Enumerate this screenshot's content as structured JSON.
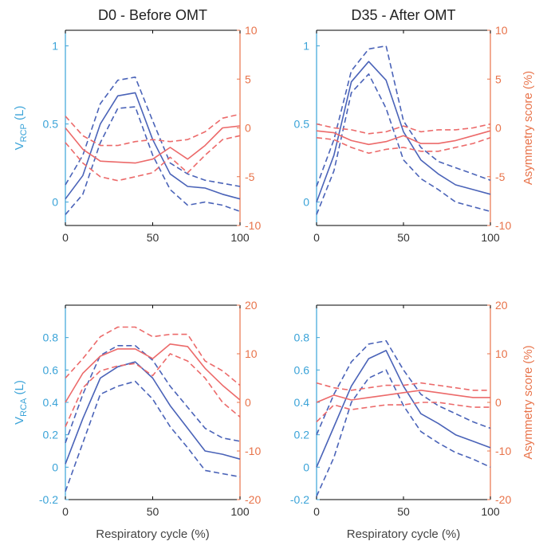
{
  "colors": {
    "blue": "#4a63b8",
    "red": "#ec6a6a",
    "left_axis": "#3aa3d8",
    "right_axis": "#e8734a",
    "frame": "#000000"
  },
  "chart_data": [
    {
      "type": "line",
      "title": "D0 - Before OMT",
      "xlabel": "",
      "xlim": [
        0,
        100
      ],
      "xticks": [
        0,
        50,
        100
      ],
      "ylabel": {
        "main": "V",
        "sub": "RCP",
        "unit": " (L)"
      },
      "ylim": [
        -0.15,
        1.1
      ],
      "yticks": [
        0,
        0.5,
        1
      ],
      "y2label": "",
      "y2lim": [
        -10,
        10
      ],
      "y2ticks": [
        -10,
        -5,
        0,
        5,
        10
      ],
      "x": [
        0,
        10,
        20,
        30,
        40,
        50,
        60,
        70,
        80,
        90,
        100
      ],
      "series": [
        {
          "axis": "left",
          "color": "blue",
          "style": "solid",
          "values": [
            0.02,
            0.17,
            0.5,
            0.68,
            0.7,
            0.4,
            0.18,
            0.1,
            0.09,
            0.05,
            0.02
          ]
        },
        {
          "axis": "left",
          "color": "blue",
          "style": "dashed",
          "values": [
            0.11,
            0.3,
            0.63,
            0.78,
            0.8,
            0.52,
            0.25,
            0.18,
            0.14,
            0.12,
            0.1
          ]
        },
        {
          "axis": "left",
          "color": "blue",
          "style": "dashed",
          "values": [
            -0.08,
            0.05,
            0.38,
            0.6,
            0.61,
            0.3,
            0.08,
            -0.02,
            0.0,
            -0.02,
            -0.06
          ]
        },
        {
          "axis": "right",
          "color": "red",
          "style": "solid",
          "values": [
            0.0,
            -2.2,
            -3.4,
            -3.5,
            -3.6,
            -3.2,
            -2.0,
            -3.2,
            -1.8,
            0.0,
            0.2
          ]
        },
        {
          "axis": "right",
          "color": "red",
          "style": "dashed",
          "values": [
            1.2,
            -0.8,
            -1.8,
            -1.8,
            -1.4,
            -1.2,
            -1.4,
            -1.2,
            -0.4,
            1.0,
            1.4
          ]
        },
        {
          "axis": "right",
          "color": "red",
          "style": "dashed",
          "values": [
            -1.5,
            -3.6,
            -5.0,
            -5.4,
            -5.0,
            -4.6,
            -3.0,
            -4.6,
            -2.8,
            -1.2,
            -0.8
          ]
        }
      ]
    },
    {
      "type": "line",
      "title": "D35 - After OMT",
      "xlabel": "",
      "xlim": [
        0,
        100
      ],
      "xticks": [
        0,
        50,
        100
      ],
      "ylabel": {
        "main": "",
        "sub": "",
        "unit": ""
      },
      "ylim": [
        -0.15,
        1.1
      ],
      "yticks": [
        0,
        0.5,
        1
      ],
      "y2label": "Asymmetry score (%)",
      "y2lim": [
        -10,
        10
      ],
      "y2ticks": [
        -10,
        -5,
        0,
        5,
        10
      ],
      "x": [
        0,
        10,
        20,
        30,
        40,
        50,
        60,
        70,
        80,
        90,
        100
      ],
      "series": [
        {
          "axis": "left",
          "color": "blue",
          "style": "solid",
          "values": [
            0.0,
            0.3,
            0.77,
            0.9,
            0.78,
            0.45,
            0.27,
            0.18,
            0.11,
            0.08,
            0.05
          ]
        },
        {
          "axis": "left",
          "color": "blue",
          "style": "dashed",
          "values": [
            0.1,
            0.4,
            0.84,
            0.98,
            1.0,
            0.52,
            0.35,
            0.26,
            0.22,
            0.18,
            0.14
          ]
        },
        {
          "axis": "left",
          "color": "blue",
          "style": "dashed",
          "values": [
            -0.08,
            0.2,
            0.7,
            0.82,
            0.6,
            0.27,
            0.15,
            0.08,
            0.0,
            -0.03,
            -0.06
          ]
        },
        {
          "axis": "right",
          "color": "red",
          "style": "solid",
          "values": [
            -0.3,
            -0.5,
            -1.3,
            -1.7,
            -1.4,
            -0.8,
            -1.6,
            -1.6,
            -1.3,
            -0.8,
            -0.3
          ]
        },
        {
          "axis": "right",
          "color": "red",
          "style": "dashed",
          "values": [
            0.4,
            0.0,
            -0.2,
            -0.6,
            -0.4,
            0.2,
            -0.4,
            -0.2,
            -0.2,
            0.0,
            0.4
          ]
        },
        {
          "axis": "right",
          "color": "red",
          "style": "dashed",
          "values": [
            -1.0,
            -1.2,
            -2.0,
            -2.6,
            -2.2,
            -2.0,
            -2.4,
            -2.4,
            -2.0,
            -1.6,
            -1.0
          ]
        }
      ]
    },
    {
      "type": "line",
      "title": "",
      "xlabel": "Respiratory cycle (%)",
      "xlim": [
        0,
        100
      ],
      "xticks": [
        0,
        50,
        100
      ],
      "ylabel": {
        "main": "V",
        "sub": "RCA",
        "unit": " (L)"
      },
      "ylim": [
        -0.2,
        1.0
      ],
      "yticks": [
        -0.2,
        0,
        0.2,
        0.4,
        0.6,
        0.8
      ],
      "y2label": "",
      "y2lim": [
        -20,
        20
      ],
      "y2ticks": [
        -20,
        -10,
        0,
        10,
        20
      ],
      "x": [
        0,
        10,
        20,
        30,
        40,
        50,
        60,
        70,
        80,
        90,
        100
      ],
      "series": [
        {
          "axis": "left",
          "color": "blue",
          "style": "solid",
          "values": [
            0.02,
            0.3,
            0.55,
            0.62,
            0.65,
            0.55,
            0.38,
            0.24,
            0.1,
            0.08,
            0.05
          ]
        },
        {
          "axis": "left",
          "color": "blue",
          "style": "dashed",
          "values": [
            0.15,
            0.45,
            0.69,
            0.75,
            0.75,
            0.66,
            0.5,
            0.37,
            0.24,
            0.18,
            0.16
          ]
        },
        {
          "axis": "left",
          "color": "blue",
          "style": "dashed",
          "values": [
            -0.15,
            0.15,
            0.45,
            0.5,
            0.53,
            0.42,
            0.25,
            0.12,
            -0.02,
            -0.04,
            -0.06
          ]
        },
        {
          "axis": "right",
          "color": "red",
          "style": "solid",
          "values": [
            0.0,
            6.0,
            9.5,
            11.0,
            11.0,
            9.0,
            12.0,
            11.5,
            7.0,
            3.5,
            0.5
          ]
        },
        {
          "axis": "right",
          "color": "red",
          "style": "dashed",
          "values": [
            5.0,
            9.0,
            13.5,
            15.5,
            15.5,
            13.5,
            14.0,
            14.0,
            8.5,
            6.5,
            3.5
          ]
        },
        {
          "axis": "right",
          "color": "red",
          "style": "dashed",
          "values": [
            -5.0,
            3.0,
            6.5,
            7.5,
            8.0,
            5.5,
            10.0,
            8.5,
            5.0,
            0.0,
            -3.0
          ]
        }
      ]
    },
    {
      "type": "line",
      "title": "",
      "xlabel": "Respiratory cycle (%)",
      "xlim": [
        0,
        100
      ],
      "xticks": [
        0,
        50,
        100
      ],
      "ylabel": {
        "main": "",
        "sub": "",
        "unit": ""
      },
      "ylim": [
        -0.2,
        1.0
      ],
      "yticks": [
        -0.2,
        0,
        0.2,
        0.4,
        0.6,
        0.8
      ],
      "y2label": "Asymmetry score (%)",
      "y2lim": [
        -20,
        20
      ],
      "y2ticks": [
        -20,
        -10,
        0,
        10,
        20
      ],
      "x": [
        0,
        10,
        20,
        30,
        40,
        50,
        60,
        70,
        80,
        90,
        100
      ],
      "series": [
        {
          "axis": "left",
          "color": "blue",
          "style": "solid",
          "values": [
            0.0,
            0.25,
            0.5,
            0.67,
            0.72,
            0.5,
            0.33,
            0.27,
            0.2,
            0.16,
            0.12
          ]
        },
        {
          "axis": "left",
          "color": "blue",
          "style": "dashed",
          "values": [
            0.2,
            0.45,
            0.65,
            0.76,
            0.78,
            0.6,
            0.45,
            0.38,
            0.33,
            0.28,
            0.24
          ]
        },
        {
          "axis": "left",
          "color": "blue",
          "style": "dashed",
          "values": [
            -0.18,
            0.06,
            0.4,
            0.55,
            0.6,
            0.38,
            0.22,
            0.15,
            0.09,
            0.05,
            0.0
          ]
        },
        {
          "axis": "right",
          "color": "red",
          "style": "solid",
          "values": [
            0.0,
            1.5,
            0.5,
            1.0,
            1.5,
            2.0,
            2.5,
            2.0,
            1.5,
            1.0,
            1.0
          ]
        },
        {
          "axis": "right",
          "color": "red",
          "style": "dashed",
          "values": [
            4.0,
            3.0,
            2.5,
            3.0,
            3.5,
            3.5,
            4.0,
            3.5,
            3.0,
            2.5,
            2.5
          ]
        },
        {
          "axis": "right",
          "color": "red",
          "style": "dashed",
          "values": [
            -4.0,
            -0.5,
            -1.5,
            -1.0,
            -0.5,
            -0.5,
            0.0,
            0.0,
            -0.5,
            -1.0,
            -1.0
          ]
        }
      ]
    }
  ]
}
